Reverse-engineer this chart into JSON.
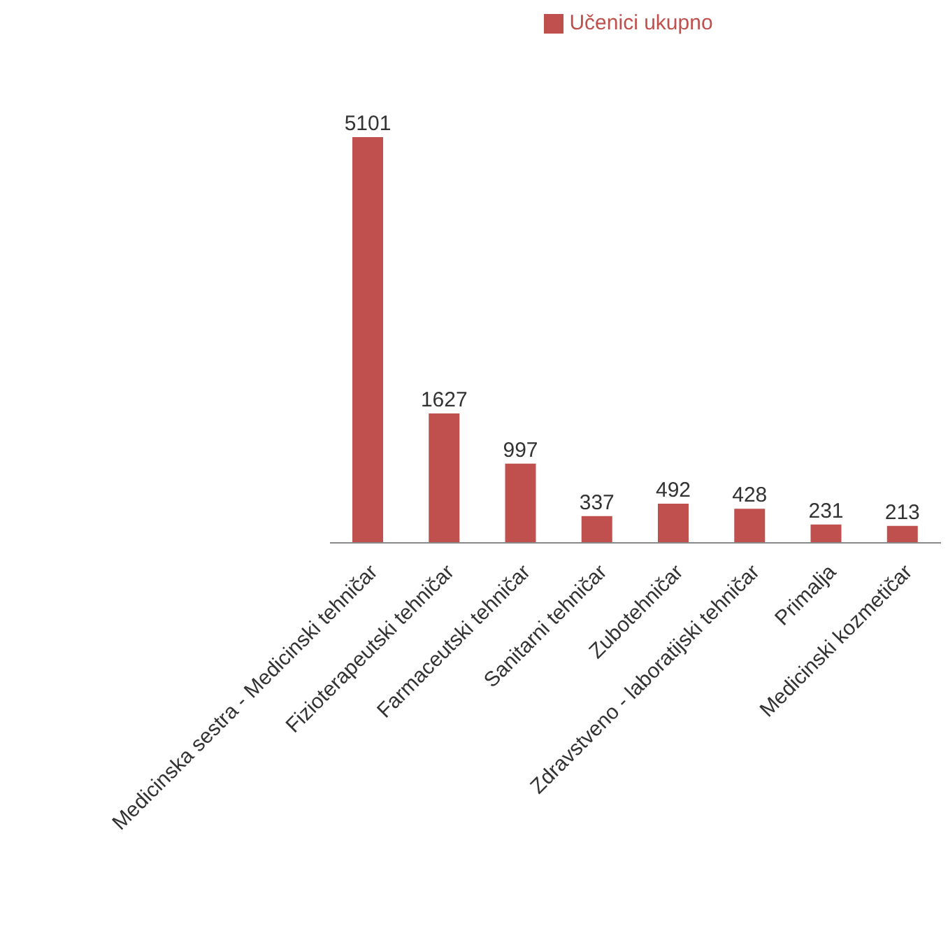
{
  "chart_data": {
    "type": "bar",
    "categories": [
      "Medicinska sestra - Medicinski tehničar",
      "Fizioterapeutski tehničar",
      "Farmaceutski tehničar",
      "Sanitarni tehničar",
      "Zubotehničar",
      "Zdravstveno - laboratijski tehničar",
      "Primalja",
      "Medicinski kozmetičar"
    ],
    "series": [
      {
        "name": "Učenici ukupno",
        "color": "#c0504d",
        "values": [
          5101,
          1627,
          997,
          337,
          492,
          428,
          231,
          213
        ]
      }
    ],
    "data_labels": true,
    "legend": "top"
  }
}
